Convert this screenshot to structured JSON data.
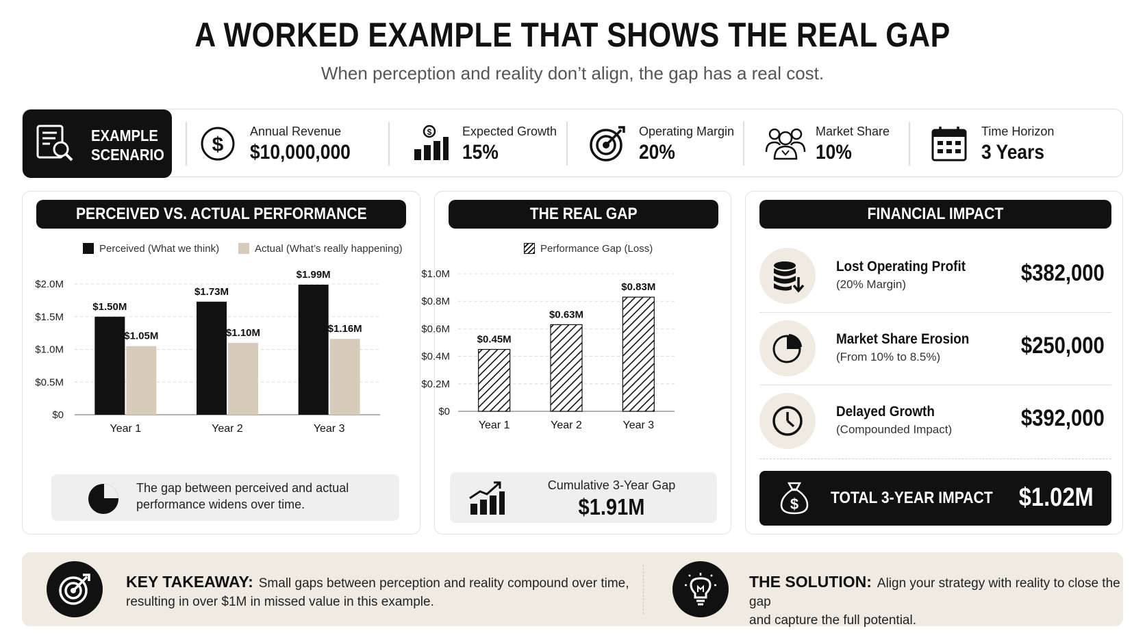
{
  "header": {
    "title": "A WORKED EXAMPLE THAT SHOWS THE REAL GAP",
    "subtitle": "When perception and reality don’t align, the gap has a real cost."
  },
  "scenario": {
    "tag_line1": "EXAMPLE",
    "tag_line2": "SCENARIO",
    "kpis": [
      {
        "label": "Annual Revenue",
        "value": "$10,000,000",
        "icon": "dollar-coin-icon"
      },
      {
        "label": "Expected Growth",
        "value": "15%",
        "icon": "growth-bars-icon"
      },
      {
        "label": "Operating Margin",
        "value": "20%",
        "icon": "target-icon"
      },
      {
        "label": "Market Share",
        "value": "10%",
        "icon": "people-group-icon"
      },
      {
        "label": "Time Horizon",
        "value": "3 Years",
        "icon": "calendar-icon"
      }
    ]
  },
  "perf_panel": {
    "title": "PERCEIVED VS. ACTUAL PERFORMANCE",
    "note": [
      "The gap between perceived and actual",
      "performance widens over time."
    ]
  },
  "gap_panel": {
    "title": "THE REAL GAP",
    "cumulative_label": "Cumulative 3-Year Gap",
    "cumulative_value": "$1.91M"
  },
  "impact_panel": {
    "title": "FINANCIAL IMPACT",
    "rows": [
      {
        "label": "Lost Operating Profit",
        "sub": "(20% Margin)",
        "value": "$382,000",
        "icon": "database-down-icon"
      },
      {
        "label": "Market Share Erosion",
        "sub": "(From 10% to 8.5%)",
        "value": "$250,000",
        "icon": "pie-slice-icon"
      },
      {
        "label": "Delayed Growth",
        "sub": "(Compounded Impact)",
        "value": "$392,000",
        "icon": "clock-icon"
      }
    ],
    "total_label": "TOTAL 3-YEAR IMPACT",
    "total_value": "$1.02M"
  },
  "takeaway": {
    "key_label": "KEY TAKEAWAY:",
    "key_text_1": "Small gaps between perception and reality compound over time,",
    "key_text_2": "resulting in over $1M in missed value in this example.",
    "solution_label": "THE SOLUTION:",
    "solution_text_1": "Align your strategy with reality to close the gap",
    "solution_text_2": "and capture the full potential."
  },
  "colors": {
    "dark": "#111111",
    "beige": "#d6ccb9",
    "panel_gray": "#efefef",
    "accent_bg": "#efebe3"
  },
  "chart_data": [
    {
      "type": "bar",
      "title": "PERCEIVED VS. ACTUAL PERFORMANCE",
      "categories": [
        "Year 1",
        "Year 2",
        "Year 3"
      ],
      "series": [
        {
          "name": "Perceived (What we think)",
          "values": [
            1.5,
            1.73,
            1.99
          ],
          "labels": [
            "$1.50M",
            "$1.73M",
            "$1.99M"
          ],
          "color": "#111111"
        },
        {
          "name": "Actual (What’s really happening)",
          "values": [
            1.05,
            1.1,
            1.16
          ],
          "labels": [
            "$1.05M",
            "$1.10M",
            "$1.16M"
          ],
          "color": "#d6ccb9"
        }
      ],
      "yticks": [
        0,
        0.5,
        1.0,
        1.5,
        2.0
      ],
      "ytick_labels": [
        "$0",
        "$0.5M",
        "$1.0M",
        "$1.5M",
        "$2.0M"
      ],
      "ylim": [
        0,
        2.0
      ],
      "legend": "top"
    },
    {
      "type": "bar",
      "title": "THE REAL GAP",
      "categories": [
        "Year 1",
        "Year 2",
        "Year 3"
      ],
      "series": [
        {
          "name": "Performance Gap (Loss)",
          "values": [
            0.45,
            0.63,
            0.83
          ],
          "labels": [
            "$0.45M",
            "$0.63M",
            "$0.83M"
          ],
          "pattern": "hatched"
        }
      ],
      "yticks": [
        0,
        0.2,
        0.4,
        0.6,
        0.8,
        1.0
      ],
      "ytick_labels": [
        "$0",
        "$0.2M",
        "$0.4M",
        "$0.6M",
        "$0.8M",
        "$1.0M"
      ],
      "ylim": [
        0,
        1.0
      ],
      "legend": "top"
    }
  ]
}
